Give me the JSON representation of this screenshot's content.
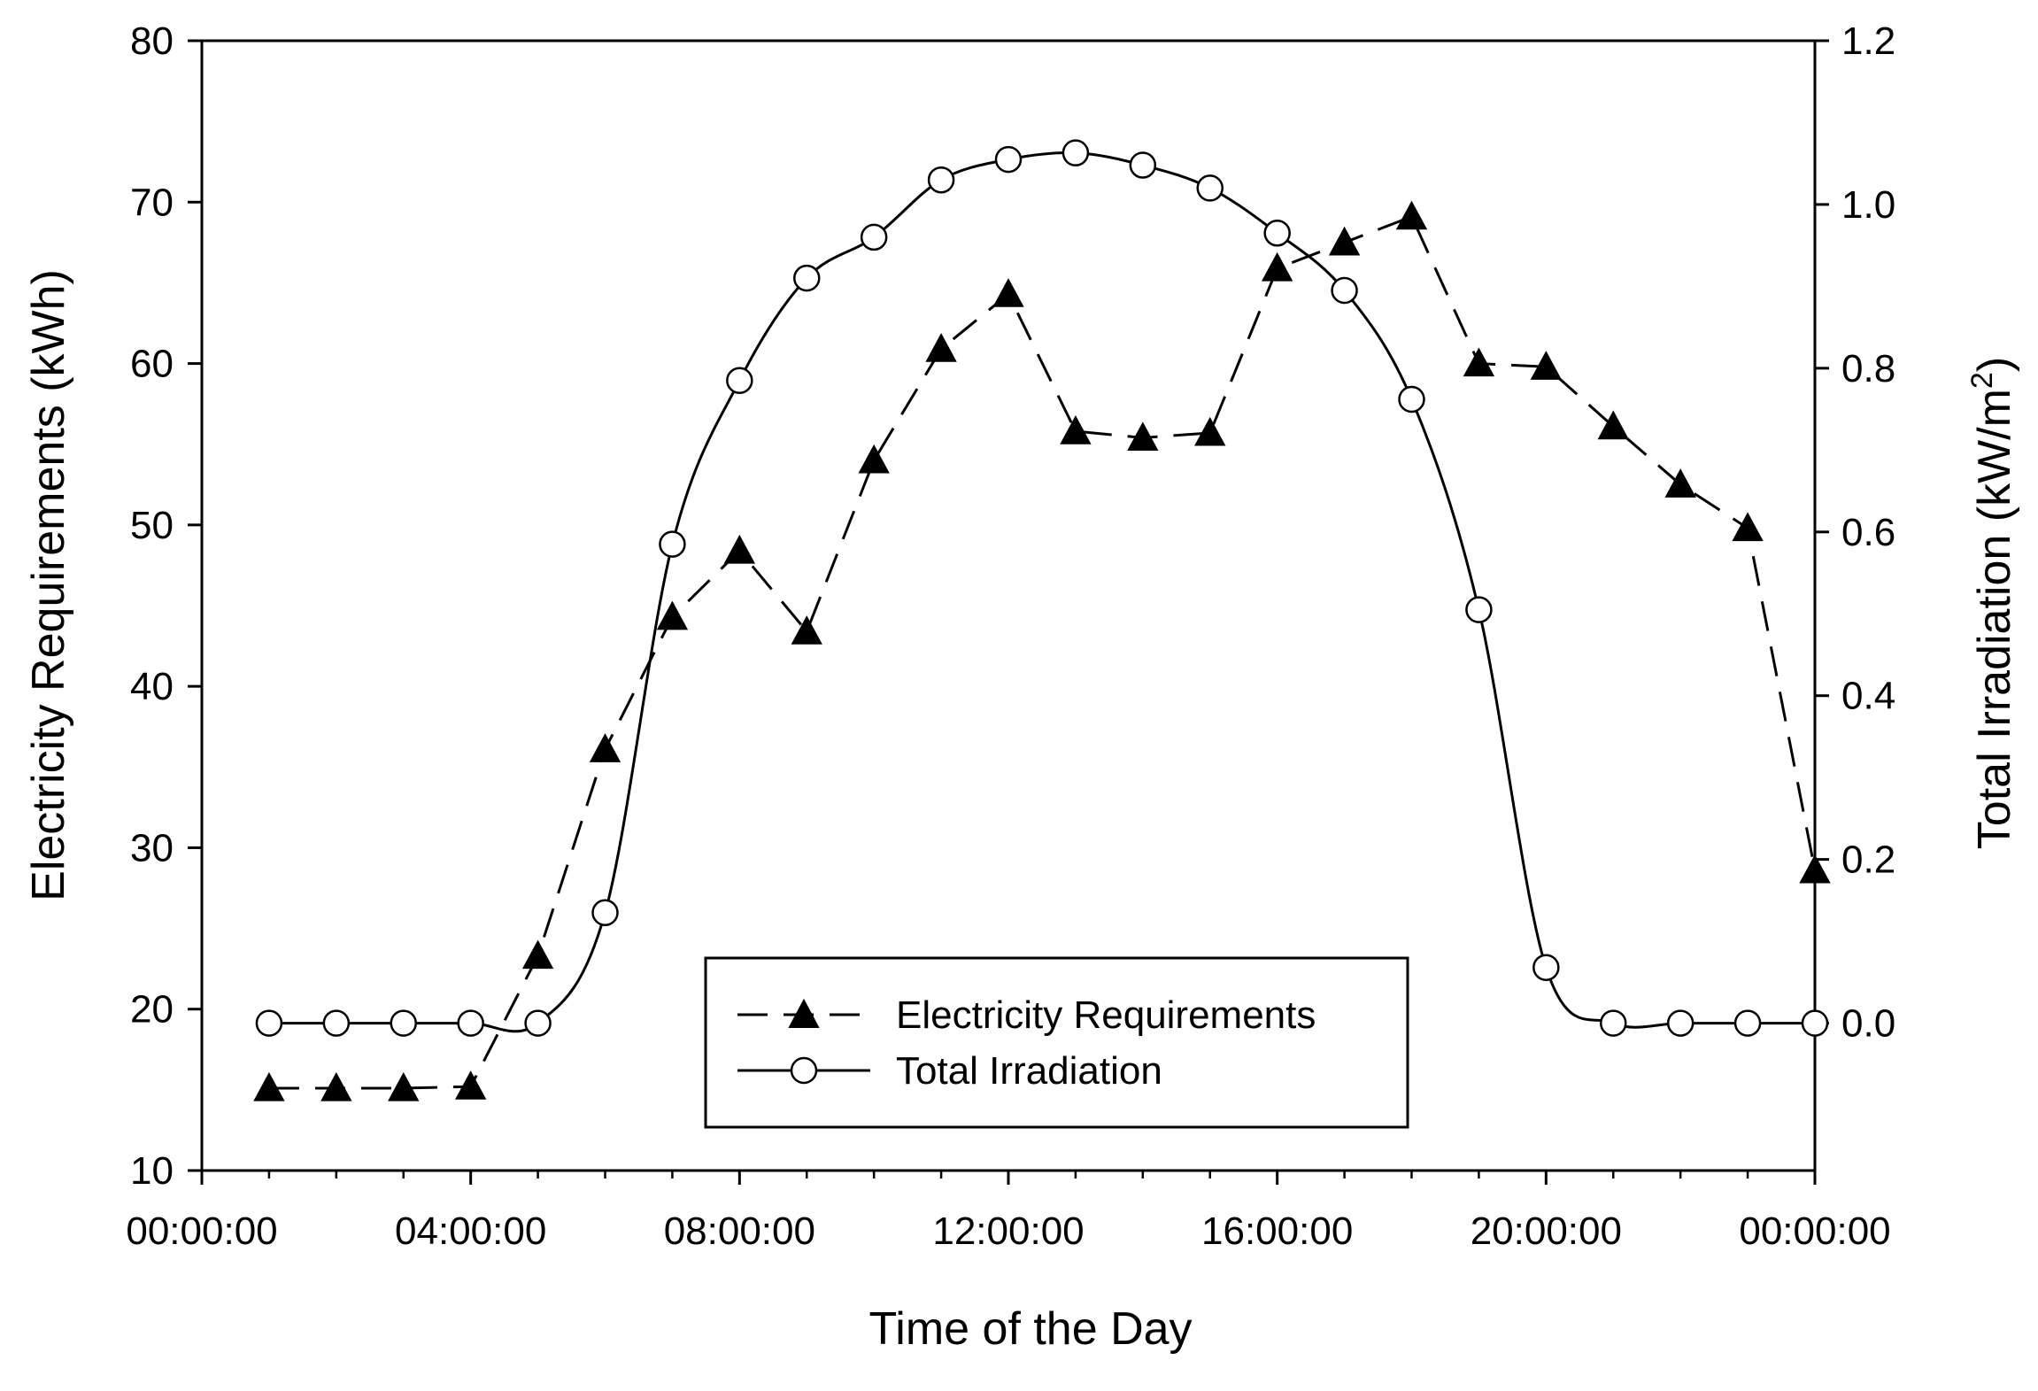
{
  "chart_data": {
    "type": "line",
    "title": "",
    "xlabel": "Time of the Day",
    "ylabel_left": "Electricity Requirements (kWh)",
    "ylabel_right_prefix": "Total Irradiation (kW/m",
    "ylabel_right_sup": "2",
    "ylabel_right_suffix": ")",
    "xlim": [
      0,
      24
    ],
    "ylim_left": [
      10,
      80
    ],
    "ylim_right": [
      -0.18,
      1.2
    ],
    "x_ticks": [
      {
        "value": 0,
        "label": "00:00:00"
      },
      {
        "value": 4,
        "label": "04:00:00"
      },
      {
        "value": 8,
        "label": "08:00:00"
      },
      {
        "value": 12,
        "label": "12:00:00"
      },
      {
        "value": 16,
        "label": "16:00:00"
      },
      {
        "value": 20,
        "label": "20:00:00"
      },
      {
        "value": 24,
        "label": "00:00:00"
      }
    ],
    "y_left_ticks": [
      "10",
      "20",
      "30",
      "40",
      "50",
      "60",
      "70",
      "80"
    ],
    "y_right_ticks": [
      "0.0",
      "0.2",
      "0.4",
      "0.6",
      "0.8",
      "1.0",
      "1.2"
    ],
    "legend_position": "bottom-center",
    "series": [
      {
        "name": "Electricity Requirements",
        "axis": "left",
        "marker": "filled-triangle",
        "line_style": "dashed",
        "color": "#000000",
        "x": [
          1,
          2,
          3,
          4,
          5,
          6,
          7,
          8,
          9,
          10,
          11,
          12,
          13,
          14,
          15,
          16,
          17,
          18,
          19,
          20,
          21,
          22,
          23,
          24
        ],
        "values": [
          15.1,
          15.1,
          15.1,
          15.2,
          23.3,
          36.1,
          44.3,
          48.4,
          43.4,
          54.0,
          60.9,
          64.3,
          55.8,
          55.4,
          55.7,
          65.9,
          67.5,
          69.1,
          60.0,
          59.8,
          56.1,
          52.5,
          49.8,
          28.6
        ]
      },
      {
        "name": "Total Irradiation",
        "axis": "right",
        "marker": "open-circle",
        "line_style": "solid",
        "color": "#000000",
        "x": [
          1,
          2,
          3,
          4,
          5,
          6,
          7,
          8,
          9,
          10,
          11,
          12,
          13,
          14,
          15,
          16,
          17,
          18,
          19,
          20,
          21,
          22,
          23,
          24
        ],
        "values": [
          0.0,
          0.0,
          0.0,
          0.0,
          0.0,
          0.135,
          0.585,
          0.785,
          0.91,
          0.96,
          1.03,
          1.055,
          1.063,
          1.048,
          1.02,
          0.965,
          0.895,
          0.762,
          0.505,
          0.068,
          0.0,
          0.0,
          0.0,
          0.0
        ]
      }
    ]
  }
}
